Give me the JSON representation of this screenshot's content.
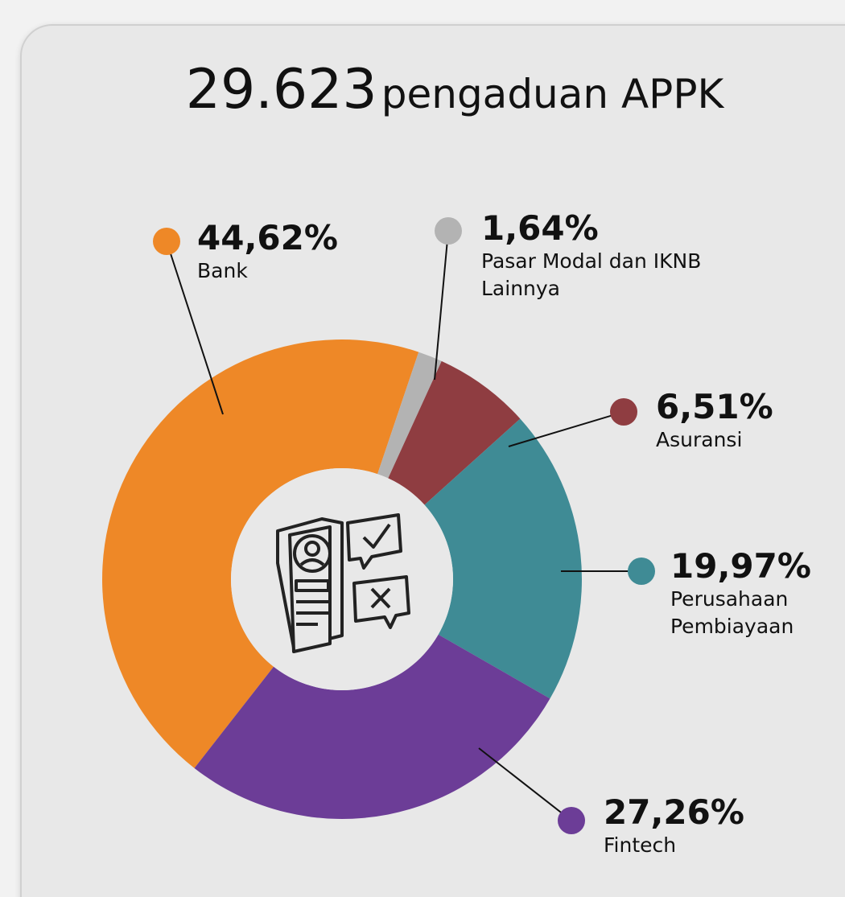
{
  "chart_data": {
    "type": "donut",
    "title": "29.623",
    "subtitle": "pengaduan APPK",
    "categories": [
      "Bank",
      "Pasar Modal dan IKNB Lainnya",
      "Asuransi",
      "Perusahaan Pembiayaan",
      "Fintech"
    ],
    "values": [
      44.62,
      1.64,
      6.51,
      19.97,
      27.26
    ],
    "value_labels": [
      "44,62%",
      "1,64%",
      "6,51%",
      "19,97%",
      "27,26%"
    ],
    "colors": [
      "#ee8827",
      "#b3b3b3",
      "#8f3d41",
      "#3f8b95",
      "#6c3d97"
    ]
  }
}
